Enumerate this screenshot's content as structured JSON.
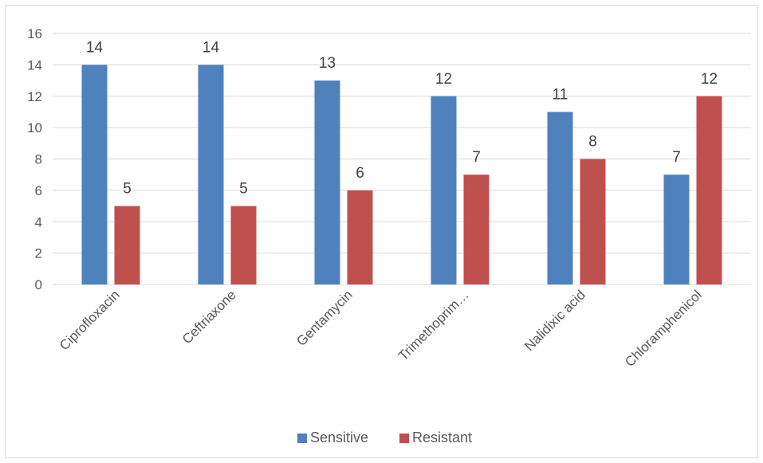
{
  "chart_data": {
    "type": "bar",
    "title": "",
    "xlabel": "",
    "ylabel": "",
    "ylim": [
      0,
      16
    ],
    "ytick_step": 2,
    "yticks": [
      "0",
      "2",
      "4",
      "6",
      "8",
      "10",
      "12",
      "14",
      "16"
    ],
    "grid": true,
    "legend_position": "bottom",
    "categories": [
      "Ciprofloxacin",
      "Ceftriaxone",
      "Gentamycin",
      "Trimethoprim…",
      "Nalidixic acid",
      "Chloramphenicol"
    ],
    "series": [
      {
        "name": "Sensitive",
        "color": "#4f81bd",
        "values": [
          14,
          14,
          13,
          12,
          11,
          7
        ]
      },
      {
        "name": "Resistant",
        "color": "#c0504d",
        "values": [
          5,
          5,
          6,
          7,
          8,
          12
        ]
      }
    ]
  }
}
